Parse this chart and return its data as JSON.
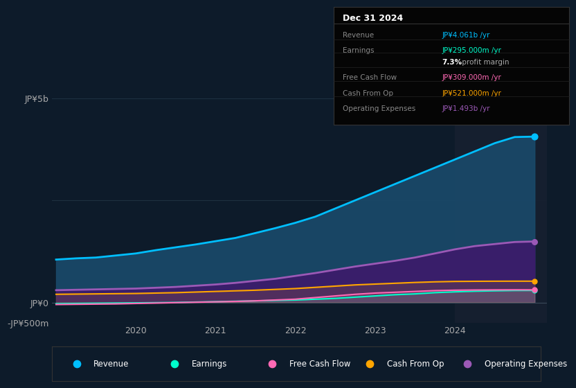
{
  "background_color": "#0d1b2a",
  "plot_bg_color": "#0d1b2a",
  "years": [
    2019.0,
    2019.25,
    2019.5,
    2019.75,
    2020.0,
    2020.25,
    2020.5,
    2020.75,
    2021.0,
    2021.25,
    2021.5,
    2021.75,
    2022.0,
    2022.25,
    2022.5,
    2022.75,
    2023.0,
    2023.25,
    2023.5,
    2023.75,
    2024.0,
    2024.25,
    2024.5,
    2024.75,
    2025.0
  ],
  "revenue": [
    1050,
    1080,
    1100,
    1150,
    1200,
    1280,
    1350,
    1420,
    1500,
    1580,
    1700,
    1820,
    1950,
    2100,
    2300,
    2500,
    2700,
    2900,
    3100,
    3300,
    3500,
    3700,
    3900,
    4050,
    4061
  ],
  "earnings": [
    -30,
    -25,
    -20,
    -15,
    -10,
    -5,
    0,
    10,
    20,
    30,
    40,
    50,
    60,
    80,
    100,
    130,
    160,
    190,
    210,
    240,
    260,
    275,
    285,
    293,
    295
  ],
  "free_cash_flow": [
    -50,
    -45,
    -40,
    -35,
    -25,
    -15,
    -5,
    5,
    15,
    25,
    40,
    60,
    80,
    120,
    160,
    200,
    230,
    250,
    270,
    290,
    300,
    305,
    308,
    310,
    309
  ],
  "cash_from_op": [
    200,
    205,
    210,
    215,
    220,
    230,
    240,
    255,
    270,
    285,
    300,
    320,
    340,
    370,
    400,
    430,
    450,
    470,
    490,
    505,
    515,
    518,
    520,
    521,
    521
  ],
  "operating_expenses": [
    300,
    310,
    320,
    330,
    340,
    360,
    380,
    410,
    440,
    480,
    530,
    580,
    650,
    720,
    800,
    880,
    950,
    1020,
    1100,
    1200,
    1300,
    1380,
    1430,
    1480,
    1493
  ],
  "revenue_color": "#00bfff",
  "earnings_color": "#00ffcc",
  "free_cash_flow_color": "#ff69b4",
  "cash_from_op_color": "#ffa500",
  "operating_expenses_color": "#9b59b6",
  "revenue_fill": "#1a4a6b",
  "operating_expenses_fill": "#3d1a6b",
  "yticks_labels": [
    "JP¥5b",
    "",
    "JP¥0",
    "-JP¥500m"
  ],
  "yticks_values": [
    5000,
    2500,
    0,
    -500
  ],
  "xlabel_year_ticks": [
    2020,
    2021,
    2022,
    2023,
    2024
  ],
  "highlight_x": 2024.0,
  "info_box": {
    "title": "Dec 31 2024",
    "rows": [
      {
        "label": "Revenue",
        "value": "JP¥4.061b /yr",
        "value_color": "#00bfff"
      },
      {
        "label": "Earnings",
        "value": "JP¥295.000m /yr",
        "value_color": "#00ffcc"
      },
      {
        "label": "",
        "value": "7.3% profit margin",
        "value_color": "#ffffff",
        "bold_part": "7.3%"
      },
      {
        "label": "Free Cash Flow",
        "value": "JP¥309.000m /yr",
        "value_color": "#ff69b4"
      },
      {
        "label": "Cash From Op",
        "value": "JP¥521.000m /yr",
        "value_color": "#ffa500"
      },
      {
        "label": "Operating Expenses",
        "value": "JP¥1.493b /yr",
        "value_color": "#9b59b6"
      }
    ]
  },
  "legend_items": [
    {
      "label": "Revenue",
      "color": "#00bfff"
    },
    {
      "label": "Earnings",
      "color": "#00ffcc"
    },
    {
      "label": "Free Cash Flow",
      "color": "#ff69b4"
    },
    {
      "label": "Cash From Op",
      "color": "#ffa500"
    },
    {
      "label": "Operating Expenses",
      "color": "#9b59b6"
    }
  ]
}
